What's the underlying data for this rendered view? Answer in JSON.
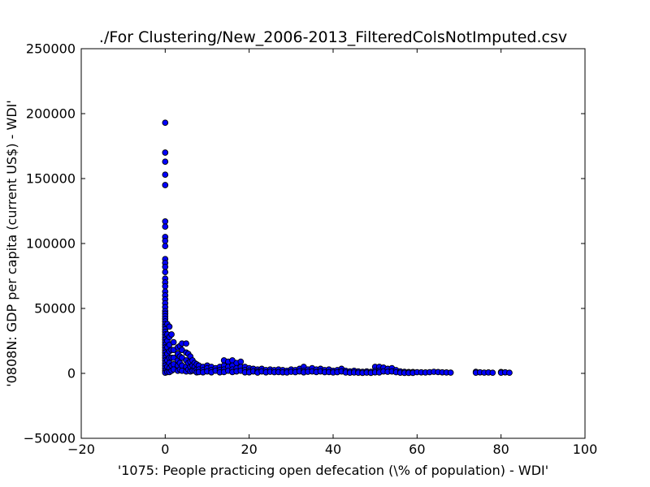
{
  "chart_data": {
    "type": "scatter",
    "title": "./For Clustering/New_2006-2013_FilteredColsNotImputed.csv",
    "xlabel": "'1075: People practicing open defecation  (\\% of population) - WDI'",
    "ylabel": "'0808N: GDP per capita  (current US$) - WDI'",
    "xlim": [
      -20,
      100
    ],
    "ylim": [
      -50000,
      250000
    ],
    "xticks": [
      "−20",
      "0",
      "20",
      "40",
      "60",
      "80",
      "100"
    ],
    "yticks": [
      "−50000",
      "0",
      "50000",
      "100000",
      "150000",
      "200000",
      "250000"
    ],
    "xtick_values": [
      -20,
      0,
      20,
      40,
      60,
      80,
      100
    ],
    "ytick_values": [
      -50000,
      0,
      50000,
      100000,
      150000,
      200000,
      250000
    ],
    "grid": false,
    "colors": {
      "marker_fill": "#0000ff",
      "marker_edge": "#000000"
    },
    "series": [
      {
        "points": [
          [
            0,
            193000
          ],
          [
            0,
            170000
          ],
          [
            0,
            163000
          ],
          [
            0,
            153000
          ],
          [
            0,
            145000
          ],
          [
            0,
            117000
          ],
          [
            0,
            113000
          ],
          [
            0,
            105000
          ],
          [
            0,
            102000
          ],
          [
            0,
            98000
          ],
          [
            0,
            88000
          ],
          [
            0,
            85000
          ],
          [
            0,
            82000
          ],
          [
            0,
            78000
          ],
          [
            0,
            73000
          ],
          [
            0,
            70000
          ],
          [
            0,
            67000
          ],
          [
            0,
            63000
          ],
          [
            0,
            60000
          ],
          [
            0,
            57000
          ],
          [
            0,
            54000
          ],
          [
            0,
            51000
          ],
          [
            0,
            48000
          ],
          [
            0,
            46000
          ],
          [
            0,
            44000
          ],
          [
            0,
            42000
          ],
          [
            0,
            40000
          ],
          [
            0,
            38000
          ],
          [
            0,
            36000
          ],
          [
            0,
            34000
          ],
          [
            0,
            32000
          ],
          [
            0,
            30000
          ],
          [
            0,
            28000
          ],
          [
            0,
            26000
          ],
          [
            0,
            24000
          ],
          [
            0,
            22000
          ],
          [
            0,
            20000
          ],
          [
            0,
            18000
          ],
          [
            0,
            16000
          ],
          [
            0,
            14000
          ],
          [
            0,
            12000
          ],
          [
            0,
            10000
          ],
          [
            0,
            8000
          ],
          [
            0,
            6000
          ],
          [
            0,
            4000
          ],
          [
            0,
            2000
          ],
          [
            0,
            500
          ],
          [
            0.5,
            38000
          ],
          [
            0.5,
            30000
          ],
          [
            0.5,
            25000
          ],
          [
            0.5,
            20000
          ],
          [
            0.5,
            15000
          ],
          [
            0.5,
            10000
          ],
          [
            0.5,
            5000
          ],
          [
            0.5,
            1000
          ],
          [
            1,
            36000
          ],
          [
            1,
            28000
          ],
          [
            1,
            22000
          ],
          [
            1,
            17000
          ],
          [
            1,
            12000
          ],
          [
            1,
            8000
          ],
          [
            1,
            4000
          ],
          [
            1,
            1000
          ],
          [
            1.5,
            30000
          ],
          [
            1.5,
            18000
          ],
          [
            1.5,
            12000
          ],
          [
            1.5,
            6000
          ],
          [
            1.5,
            2000
          ],
          [
            2,
            24000
          ],
          [
            2,
            18000
          ],
          [
            2,
            12000
          ],
          [
            2,
            7000
          ],
          [
            2,
            3000
          ],
          [
            3,
            20000
          ],
          [
            3,
            15000
          ],
          [
            3,
            10000
          ],
          [
            3,
            6000
          ],
          [
            3,
            2000
          ],
          [
            3.5,
            21000
          ],
          [
            3.5,
            13000
          ],
          [
            3.5,
            8000
          ],
          [
            3.5,
            3000
          ],
          [
            4,
            23000
          ],
          [
            4,
            18000
          ],
          [
            4,
            12000
          ],
          [
            4,
            6000
          ],
          [
            4,
            2000
          ],
          [
            5,
            23000
          ],
          [
            5,
            16000
          ],
          [
            5,
            10000
          ],
          [
            5,
            5000
          ],
          [
            5,
            1500
          ],
          [
            5.5,
            15000
          ],
          [
            5.5,
            8000
          ],
          [
            5.5,
            3000
          ],
          [
            6,
            13000
          ],
          [
            6,
            9000
          ],
          [
            6,
            5000
          ],
          [
            6,
            1500
          ],
          [
            6.5,
            10000
          ],
          [
            6.5,
            6000
          ],
          [
            6.5,
            2000
          ],
          [
            7,
            8000
          ],
          [
            7,
            5000
          ],
          [
            7,
            2000
          ],
          [
            7.5,
            7000
          ],
          [
            7.5,
            3000
          ],
          [
            7.5,
            800
          ],
          [
            8,
            6000
          ],
          [
            8,
            3000
          ],
          [
            8,
            1000
          ],
          [
            9,
            5000
          ],
          [
            9,
            2500
          ],
          [
            9,
            800
          ],
          [
            10,
            6000
          ],
          [
            10,
            4000
          ],
          [
            10,
            1500
          ],
          [
            11,
            5000
          ],
          [
            11,
            2500
          ],
          [
            11,
            800
          ],
          [
            12,
            4000
          ],
          [
            12,
            2000
          ],
          [
            13,
            5000
          ],
          [
            13,
            2500
          ],
          [
            13,
            800
          ],
          [
            14,
            10000
          ],
          [
            14,
            6000
          ],
          [
            14,
            3000
          ],
          [
            14,
            1000
          ],
          [
            15,
            9000
          ],
          [
            15,
            5000
          ],
          [
            15,
            2000
          ],
          [
            16,
            10000
          ],
          [
            16,
            6000
          ],
          [
            16,
            3000
          ],
          [
            16,
            1000
          ],
          [
            17,
            8000
          ],
          [
            17,
            4000
          ],
          [
            17,
            1500
          ],
          [
            18,
            9000
          ],
          [
            18,
            5000
          ],
          [
            18,
            2000
          ],
          [
            19,
            5000
          ],
          [
            19,
            2500
          ],
          [
            19,
            800
          ],
          [
            20,
            4000
          ],
          [
            20,
            2000
          ],
          [
            20,
            800
          ],
          [
            21,
            3500
          ],
          [
            21,
            1500
          ],
          [
            22,
            3000
          ],
          [
            22,
            1500
          ],
          [
            22,
            600
          ],
          [
            23,
            3500
          ],
          [
            23,
            1500
          ],
          [
            24,
            2500
          ],
          [
            24,
            800
          ],
          [
            25,
            3000
          ],
          [
            25,
            1200
          ],
          [
            26,
            2500
          ],
          [
            26,
            900
          ],
          [
            27,
            3000
          ],
          [
            27,
            1000
          ],
          [
            28,
            2500
          ],
          [
            28,
            800
          ],
          [
            29,
            2000
          ],
          [
            29,
            700
          ],
          [
            30,
            3000
          ],
          [
            30,
            1200
          ],
          [
            31,
            2500
          ],
          [
            31,
            900
          ],
          [
            32,
            3500
          ],
          [
            32,
            1500
          ],
          [
            33,
            5000
          ],
          [
            33,
            2000
          ],
          [
            33,
            800
          ],
          [
            34,
            3000
          ],
          [
            34,
            1200
          ],
          [
            35,
            4000
          ],
          [
            35,
            1500
          ],
          [
            36,
            3000
          ],
          [
            36,
            1000
          ],
          [
            37,
            3500
          ],
          [
            37,
            1500
          ],
          [
            38,
            2500
          ],
          [
            38,
            900
          ],
          [
            39,
            3000
          ],
          [
            39,
            1000
          ],
          [
            40,
            2000
          ],
          [
            40,
            700
          ],
          [
            41,
            2500
          ],
          [
            41,
            900
          ],
          [
            42,
            3500
          ],
          [
            42,
            1500
          ],
          [
            43,
            2000
          ],
          [
            43,
            700
          ],
          [
            44,
            1500
          ],
          [
            44,
            500
          ],
          [
            45,
            2000
          ],
          [
            45,
            700
          ],
          [
            46,
            1500
          ],
          [
            46,
            500
          ],
          [
            47,
            1200
          ],
          [
            47,
            400
          ],
          [
            48,
            1500
          ],
          [
            48,
            600
          ],
          [
            49,
            1200
          ],
          [
            49,
            400
          ],
          [
            50,
            5000
          ],
          [
            50,
            2000
          ],
          [
            50,
            800
          ],
          [
            51,
            5000
          ],
          [
            51,
            2000
          ],
          [
            51,
            700
          ],
          [
            52,
            4500
          ],
          [
            52,
            1500
          ],
          [
            53,
            3500
          ],
          [
            53,
            1200
          ],
          [
            54,
            4000
          ],
          [
            54,
            1500
          ],
          [
            55,
            2500
          ],
          [
            55,
            900
          ],
          [
            56,
            1500
          ],
          [
            56,
            500
          ],
          [
            57,
            1200
          ],
          [
            57,
            400
          ],
          [
            58,
            1000
          ],
          [
            58,
            400
          ],
          [
            59,
            1000
          ],
          [
            59,
            400
          ],
          [
            60,
            900
          ],
          [
            61,
            800
          ],
          [
            62,
            700
          ],
          [
            63,
            900
          ],
          [
            64,
            1200
          ],
          [
            65,
            1000
          ],
          [
            66,
            800
          ],
          [
            67,
            700
          ],
          [
            68,
            600
          ],
          [
            74,
            1200
          ],
          [
            74,
            500
          ],
          [
            75,
            800
          ],
          [
            76,
            600
          ],
          [
            77,
            700
          ],
          [
            78,
            500
          ],
          [
            80,
            1000
          ],
          [
            80,
            500
          ],
          [
            81,
            800
          ],
          [
            82,
            500
          ]
        ]
      }
    ]
  }
}
